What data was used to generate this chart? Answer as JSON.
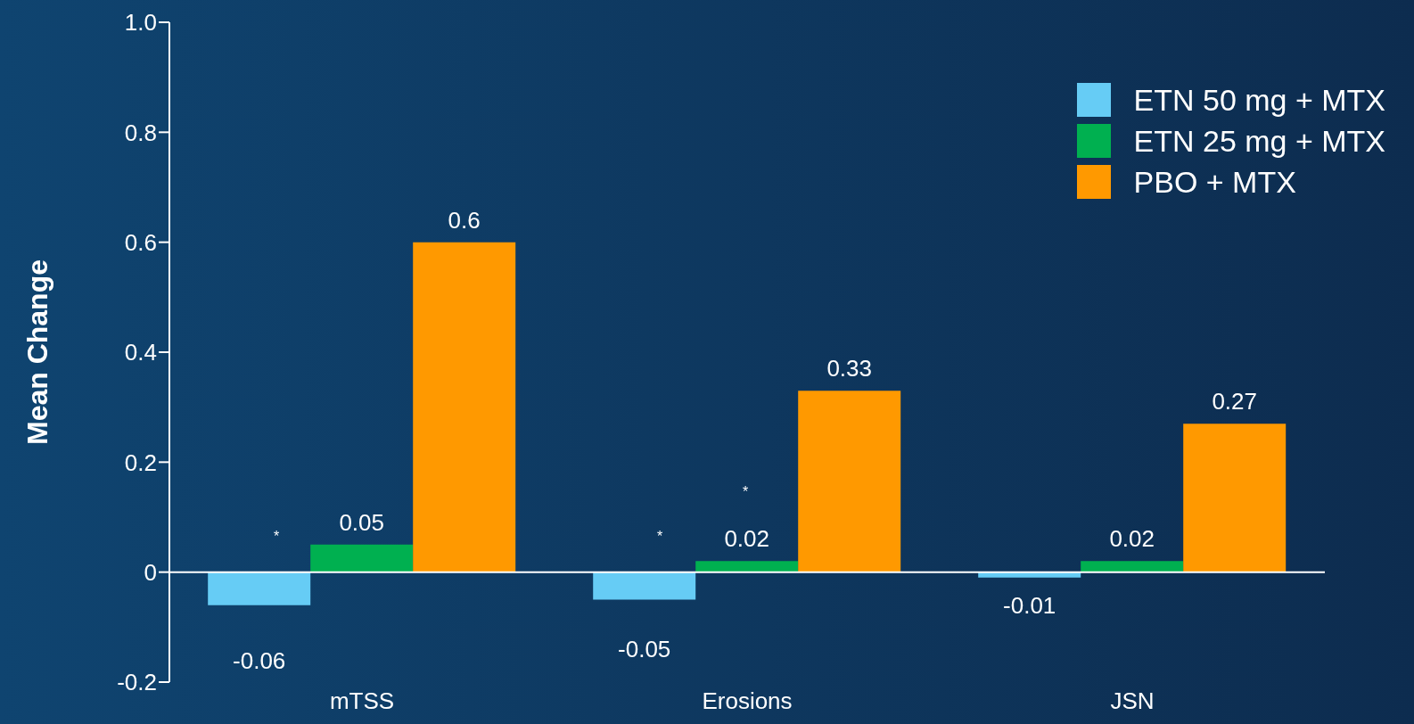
{
  "chart_data": {
    "type": "bar",
    "ylabel": "Mean Change",
    "categories": [
      "mTSS",
      "Erosions",
      "JSN"
    ],
    "series": [
      {
        "name": "ETN 50 mg + MTX",
        "color": "#66ccf5",
        "values": [
          -0.06,
          -0.05,
          -0.01
        ]
      },
      {
        "name": "ETN 25 mg + MTX",
        "color": "#00b050",
        "values": [
          0.05,
          0.02,
          0.02
        ]
      },
      {
        "name": "PBO + MTX",
        "color": "#ff9900",
        "values": [
          0.6,
          0.33,
          0.27
        ]
      }
    ],
    "ylim": [
      -0.2,
      1.0
    ],
    "yticks": [
      {
        "value": -0.2,
        "label": "-0.2"
      },
      {
        "value": 0,
        "label": "0"
      },
      {
        "value": 0.2,
        "label": "0.2"
      },
      {
        "value": 0.4,
        "label": "0.4"
      },
      {
        "value": 0.6,
        "label": "0.6"
      },
      {
        "value": 0.8,
        "label": "0.8"
      },
      {
        "value": 1.0,
        "label": "1.0"
      }
    ],
    "legend": "top right",
    "data_labels": true,
    "annotations": [
      "*",
      "*",
      "*"
    ]
  }
}
